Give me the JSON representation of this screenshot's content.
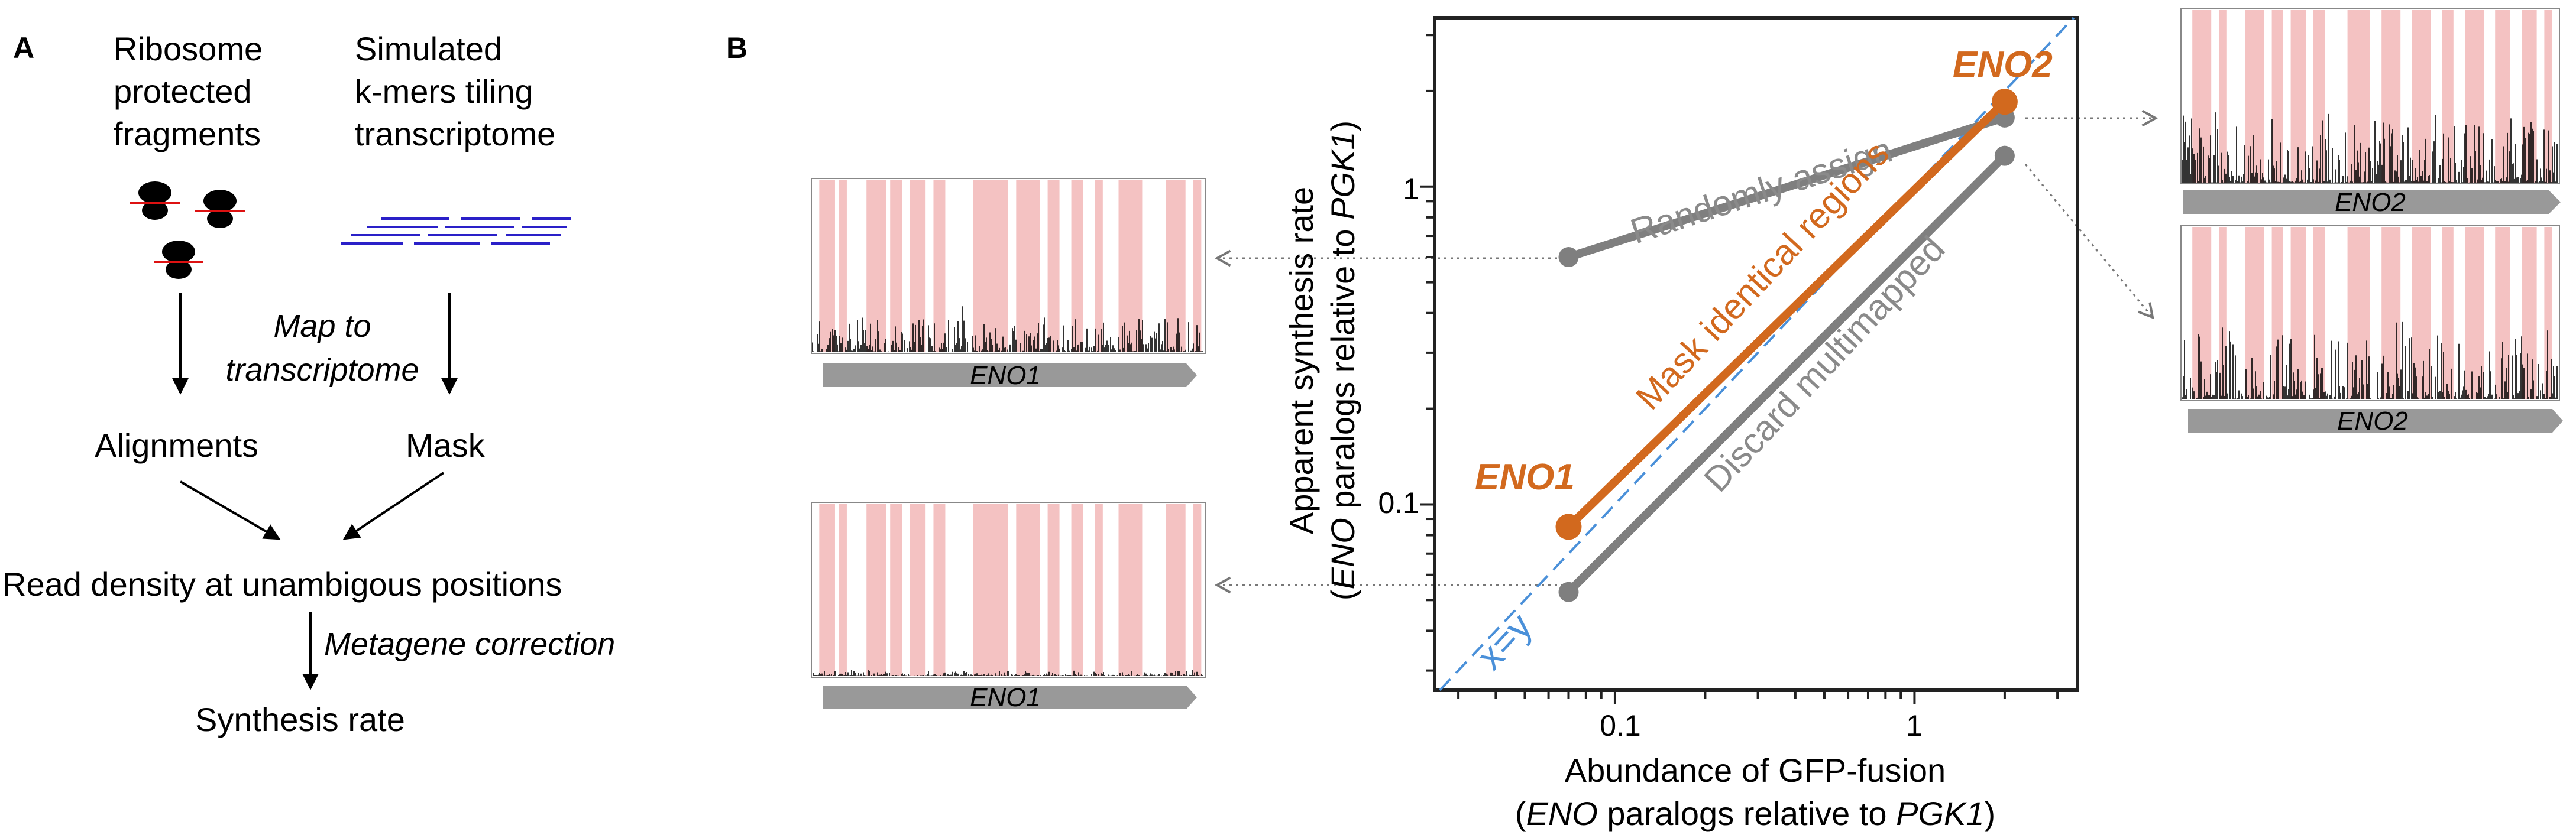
{
  "panel_a": {
    "label": "A",
    "col1_line1": "Ribosome",
    "col1_line2": "protected",
    "col1_line3": "fragments",
    "col2_line1": "Simulated",
    "col2_line2": "k-mers tiling",
    "col2_line3": "transcriptome",
    "map_line1": "Map to",
    "map_line2": "transcriptome",
    "alignments": "Alignments",
    "mask": "Mask",
    "read_density": "Read density at unambigous positions",
    "metagene": "Metagene correction",
    "synthesis": "Synthesis rate"
  },
  "panel_b": {
    "label": "B",
    "eno1_label": "ENO1",
    "eno2_label": "ENO2",
    "line_random": "Randomly assign",
    "line_mask": "Mask identical regions",
    "line_discard": "Discard multimapped",
    "xy_label": "x=y",
    "ylabel_line1": "Apparent synthesis rate",
    "ylabel_pre": "(",
    "ylabel_eno": "ENO",
    "ylabel_mid": " paralogs relative to ",
    "ylabel_pgk": "PGK1",
    "ylabel_post": ")",
    "xlabel_line1": "Abundance of GFP-fusion",
    "xlabel_pre": "(",
    "xlabel_eno": "ENO",
    "xlabel_mid": " paralogs relative to ",
    "xlabel_pgk": "PGK1",
    "xlabel_post": ")",
    "yticks": [
      "1",
      "0.1"
    ],
    "xticks": [
      "0.1",
      "1"
    ],
    "track_top_left": "ENO1",
    "track_bottom_left": "ENO1",
    "track_top_right": "ENO2",
    "track_bottom_right": "ENO2"
  },
  "colors": {
    "orange": "#D2691E",
    "gray": "#7f7f7f",
    "blue_dash": "#4a90d9",
    "mask_pink": "#f4c2c2",
    "navy": "#2a20c8",
    "red_tick": "#dd1111"
  },
  "chart_data": {
    "type": "scatter",
    "x_scale": "log",
    "y_scale": "log",
    "xlim": [
      0.025,
      3.5
    ],
    "ylim": [
      0.026,
      3.4
    ],
    "series": [
      {
        "name": "Randomly assign",
        "points": [
          [
            0.07,
            0.6
          ],
          [
            2.0,
            1.65
          ]
        ]
      },
      {
        "name": "Mask identical regions",
        "points": [
          [
            0.07,
            0.085
          ],
          [
            2.0,
            1.85
          ]
        ]
      },
      {
        "name": "Discard multimapped",
        "points": [
          [
            0.07,
            0.053
          ],
          [
            2.0,
            1.25
          ]
        ]
      }
    ],
    "reference_line": "x=y"
  }
}
